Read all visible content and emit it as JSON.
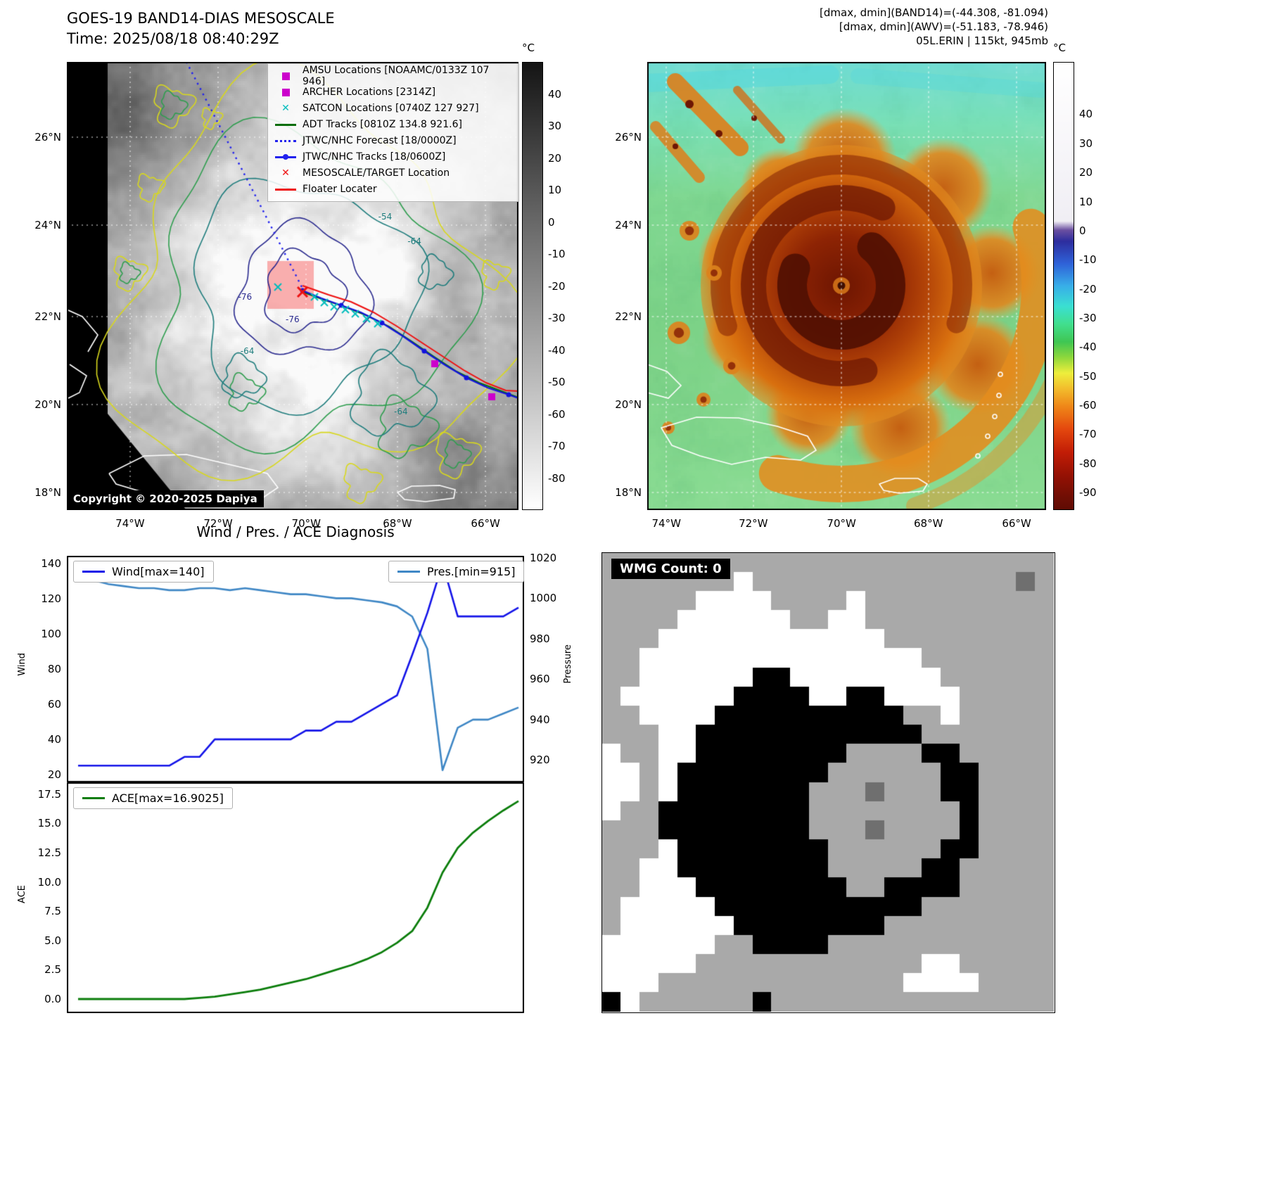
{
  "band14": {
    "title": "GOES-19 BAND14-DIAS MESOSCALE",
    "time": "Time: 2025/08/18 08:40:29Z",
    "copyright": "Copyright © 2020-2025 Dapiya",
    "legend": [
      {
        "label": "AMSU Locations [NOAAMC/0133Z 107 946]",
        "marker": "square",
        "color": "#cc00cc"
      },
      {
        "label": "ARCHER Locations [2314Z]",
        "marker": "square",
        "color": "#cc00cc"
      },
      {
        "label": "SATCON Locations [0740Z 127 927]",
        "marker": "x",
        "color": "#00bdbd"
      },
      {
        "label": "ADT Tracks [0810Z 134.8 921.6]",
        "marker": "line",
        "color": "#0a6e0a"
      },
      {
        "label": "JTWC/NHC Forecast [18/0000Z]",
        "marker": "dotted",
        "color": "#2222ee"
      },
      {
        "label": "JTWC/NHC Tracks [18/0600Z]",
        "marker": "line-dot",
        "color": "#2222ee"
      },
      {
        "label": "MESOSCALE/TARGET Location",
        "marker": "x",
        "color": "#ee1111"
      },
      {
        "label": "Floater Locater",
        "marker": "line",
        "color": "#ee1111"
      }
    ],
    "lat_ticks": [
      "26°N",
      "24°N",
      "22°N",
      "20°N",
      "18°N"
    ],
    "lon_ticks": [
      "74°W",
      "72°W",
      "70°W",
      "68°W",
      "66°W"
    ],
    "colorbar": {
      "unit": "°C",
      "ticks": [
        40,
        30,
        20,
        10,
        0,
        -10,
        -20,
        -30,
        -40,
        -50,
        -60,
        -70,
        -80
      ],
      "stops": [
        [
          0,
          "#141414"
        ],
        [
          1,
          "#ffffff"
        ]
      ]
    },
    "contour_labels": [
      {
        "t": "-54",
        "fx": 0.705,
        "fy": 0.345,
        "c": "teal"
      },
      {
        "t": "-64",
        "fx": 0.77,
        "fy": 0.4,
        "c": "teal"
      },
      {
        "t": "-76",
        "fx": 0.395,
        "fy": 0.525,
        "c": "navy"
      },
      {
        "t": "-76",
        "fx": 0.5,
        "fy": 0.575,
        "c": "navy"
      },
      {
        "t": "-64",
        "fx": 0.4,
        "fy": 0.645,
        "c": "teal"
      },
      {
        "t": "-64",
        "fx": 0.74,
        "fy": 0.78,
        "c": "teal"
      }
    ]
  },
  "awv": {
    "header": [
      "[dmax, dmin](BAND14)=(-44.308, -81.094)",
      "[dmax, dmin](AWV)=(-51.183, -78.946)",
      "05L.ERIN | 115kt, 945mb"
    ],
    "lat_ticks": [
      "26°N",
      "24°N",
      "22°N",
      "20°N",
      "18°N"
    ],
    "lon_ticks": [
      "74°W",
      "72°W",
      "70°W",
      "68°W",
      "66°W"
    ],
    "colorbar": {
      "unit": "°C",
      "ticks": [
        40,
        30,
        20,
        10,
        0,
        -10,
        -20,
        -30,
        -40,
        -50,
        -60,
        -70,
        -80,
        -90
      ],
      "stops": [
        [
          0,
          "#ffffff"
        ],
        [
          0.355,
          "#f0eef4"
        ],
        [
          0.375,
          "#6a4fa0"
        ],
        [
          0.4,
          "#2d2d9e"
        ],
        [
          0.45,
          "#2f62d8"
        ],
        [
          0.5,
          "#38aee8"
        ],
        [
          0.545,
          "#3adfd2"
        ],
        [
          0.585,
          "#41df8e"
        ],
        [
          0.625,
          "#3fc653"
        ],
        [
          0.66,
          "#8ed73c"
        ],
        [
          0.695,
          "#eeee3c"
        ],
        [
          0.73,
          "#f2bc2c"
        ],
        [
          0.77,
          "#ef8618"
        ],
        [
          0.82,
          "#e4480e"
        ],
        [
          0.872,
          "#c21d06"
        ],
        [
          0.925,
          "#941104"
        ],
        [
          0.975,
          "#6e0e04"
        ],
        [
          1,
          "#600b03"
        ]
      ]
    }
  },
  "wmg": {
    "label": "WMG Count: 0",
    "cell_colors": {
      "G": "#a9a9a9",
      "W": "#ffffff",
      "B": "#000000",
      "D": "#6f6f6f"
    },
    "grid": [
      "GGGGGGGGGGGGGGGGGGGGGGGG",
      "GGGGGGGWGGGGGGGGGGGGGGDG",
      "GGGGGWWWWGGGGWGGGGGGGGGG",
      "GGGGWWWWWWGGWWGGGGGGGGGG",
      "GGGWWWWWWWWWWWWGGGGGGGGG",
      "GGWWWWWWWWWWWWWWWGGGGGGG",
      "GGWWWWWWBBWWWWWWWWGGGGGG",
      "GWWWWWWBBBBWWBBWWWWGGGGG",
      "GGWWWWBBBBBBBBBBGGWGGGGG",
      "GGGWWBBBBBBBBBBBBGGGGGGG",
      "WGGWWBBBBBBBBGGGGBBGGGGG",
      "WWGWBBBBBBBBGGGGGGBBGGGG",
      "WWGWBBBBBBBGGGDGGGBBGGGG",
      "WGGBBBBBBBBGGGGGGGGBGGGG",
      "GGGBBBBBBBBGGGDGGGGBGGGG",
      "GGGWBBBBBBBBGGGGGGBBGGGG",
      "GGWWBBBBBBBBGGGGGBBGGGGG",
      "GGWWWBBBBBBBBGGBBBBGGGGG",
      "GWWWWWBBBBBBBBBBBGGGGGGG",
      "GWWWWWWBBBBBBBBGGGGGGGGG",
      "WWWWWWGGBBBBGGGGGGGGGGGG",
      "WWWWWGGGGGGGGGGGGWWGGGGG",
      "WWWGGGGGGGGGGGGGWWWWGGGG",
      "BWGGGGGGBGGGGGGGGGGGGGGG"
    ]
  },
  "chart_data": [
    {
      "type": "line",
      "title": "Wind / Pres. / ACE Diagnosis",
      "ylabel_left": "Wind",
      "ylabel_right": "Pressure",
      "ylim_left": [
        15.5,
        144.5
      ],
      "ylim_right": [
        909,
        1021
      ],
      "yticks_left": [
        20,
        40,
        60,
        80,
        100,
        120,
        140
      ],
      "yticks_right": [
        920,
        940,
        960,
        980,
        1000,
        1020
      ],
      "series": [
        {
          "name": "Wind[max=140]",
          "axis": "left",
          "color": "#1414e8",
          "values": [
            25,
            25,
            25,
            25,
            25,
            25,
            25,
            30,
            30,
            40,
            40,
            40,
            40,
            40,
            40,
            45,
            45,
            50,
            50,
            55,
            60,
            65,
            88,
            112,
            140,
            110,
            110,
            110,
            110,
            115
          ]
        },
        {
          "name": "Pres.[min=915]",
          "axis": "right",
          "color": "#3f87c5",
          "values": [
            1011,
            1009,
            1007,
            1006,
            1005,
            1005,
            1004,
            1004,
            1005,
            1005,
            1004,
            1005,
            1004,
            1003,
            1002,
            1002,
            1001,
            1000,
            1000,
            999,
            998,
            996,
            991,
            975,
            915,
            936,
            940,
            940,
            943,
            946
          ]
        }
      ]
    },
    {
      "type": "line",
      "ylabel": "ACE",
      "ylim": [
        -1.2,
        18.5
      ],
      "yticks": [
        0,
        2.5,
        5,
        7.5,
        10,
        12.5,
        15,
        17.5
      ],
      "series": [
        {
          "name": "ACE[max=16.9025]",
          "color": "#0b7d0b",
          "values": [
            0,
            0,
            0,
            0,
            0,
            0,
            0,
            0,
            0.1,
            0.2,
            0.4,
            0.6,
            0.8,
            1.1,
            1.4,
            1.7,
            2.1,
            2.5,
            2.9,
            3.4,
            4.0,
            4.8,
            5.8,
            7.8,
            10.8,
            12.9,
            14.2,
            15.2,
            16.1,
            16.9
          ]
        }
      ]
    }
  ]
}
